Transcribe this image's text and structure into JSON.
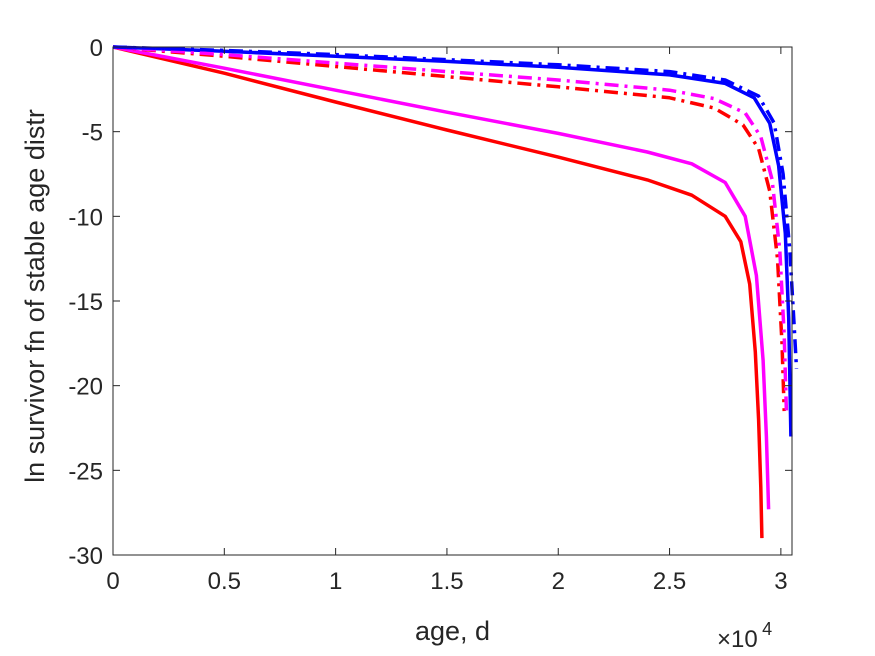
{
  "chart_data": {
    "type": "line",
    "title": "",
    "xlabel": "age, d",
    "ylabel": "ln survivor fn of stable age distr",
    "x_multiplier": {
      "base": "×10",
      "exponent": "4"
    },
    "xlim": [
      0,
      30500
    ],
    "ylim": [
      -30,
      0
    ],
    "xticks": [
      0,
      5000,
      10000,
      15000,
      20000,
      25000,
      30000
    ],
    "xtick_labels": [
      "0",
      "0.5",
      "1",
      "1.5",
      "2",
      "2.5",
      "3"
    ],
    "yticks": [
      0,
      -5,
      -10,
      -15,
      -20,
      -25,
      -30
    ],
    "ytick_labels": [
      "0",
      "-5",
      "-10",
      "-15",
      "-20",
      "-25",
      "-30"
    ],
    "grid": false,
    "series": [
      {
        "color": "#ff0000",
        "style": "solid",
        "points": [
          [
            0,
            0
          ],
          [
            5000,
            -1.55
          ],
          [
            10000,
            -3.25
          ],
          [
            15000,
            -4.9
          ],
          [
            20000,
            -6.5
          ],
          [
            24000,
            -7.85
          ],
          [
            26000,
            -8.75
          ],
          [
            27500,
            -10.0
          ],
          [
            28200,
            -11.5
          ],
          [
            28600,
            -14.0
          ],
          [
            28850,
            -18.0
          ],
          [
            29000,
            -22.0
          ],
          [
            29100,
            -26.0
          ],
          [
            29150,
            -29.0
          ]
        ]
      },
      {
        "color": "#ff00ff",
        "style": "solid",
        "points": [
          [
            0,
            0
          ],
          [
            5000,
            -1.25
          ],
          [
            10000,
            -2.55
          ],
          [
            15000,
            -3.85
          ],
          [
            20000,
            -5.1
          ],
          [
            24000,
            -6.2
          ],
          [
            26000,
            -6.9
          ],
          [
            27500,
            -8.0
          ],
          [
            28400,
            -10.0
          ],
          [
            28900,
            -13.5
          ],
          [
            29200,
            -18.5
          ],
          [
            29350,
            -23.0
          ],
          [
            29450,
            -27.3
          ]
        ]
      },
      {
        "color": "#0000ff",
        "style": "solid",
        "points": [
          [
            0,
            0
          ],
          [
            5000,
            -0.25
          ],
          [
            10000,
            -0.55
          ],
          [
            15000,
            -0.85
          ],
          [
            20000,
            -1.2
          ],
          [
            25000,
            -1.65
          ],
          [
            27500,
            -2.15
          ],
          [
            28800,
            -3.0
          ],
          [
            29500,
            -4.5
          ],
          [
            29900,
            -7.0
          ],
          [
            30200,
            -11.0
          ],
          [
            30350,
            -16.0
          ],
          [
            30450,
            -23.0
          ]
        ]
      },
      {
        "color": "#ff0000",
        "style": "dashdot",
        "points": [
          [
            0,
            0
          ],
          [
            5000,
            -0.55
          ],
          [
            10000,
            -1.15
          ],
          [
            15000,
            -1.75
          ],
          [
            20000,
            -2.35
          ],
          [
            25000,
            -3.0
          ],
          [
            27000,
            -3.6
          ],
          [
            28300,
            -4.6
          ],
          [
            29000,
            -6.0
          ],
          [
            29500,
            -8.5
          ],
          [
            29850,
            -12.5
          ],
          [
            30050,
            -17.5
          ],
          [
            30150,
            -21.5
          ]
        ]
      },
      {
        "color": "#ff00ff",
        "style": "dashdot",
        "points": [
          [
            0,
            0
          ],
          [
            5000,
            -0.45
          ],
          [
            10000,
            -0.95
          ],
          [
            15000,
            -1.45
          ],
          [
            20000,
            -1.95
          ],
          [
            25000,
            -2.55
          ],
          [
            27000,
            -3.05
          ],
          [
            28400,
            -3.9
          ],
          [
            29100,
            -5.3
          ],
          [
            29600,
            -7.8
          ],
          [
            29950,
            -12.0
          ],
          [
            30150,
            -17.0
          ],
          [
            30250,
            -21.5
          ]
        ]
      },
      {
        "color": "#0000ff",
        "style": "dashdot",
        "points": [
          [
            0,
            0
          ],
          [
            5000,
            -0.2
          ],
          [
            10000,
            -0.45
          ],
          [
            15000,
            -0.75
          ],
          [
            20000,
            -1.05
          ],
          [
            25000,
            -1.45
          ],
          [
            27500,
            -1.95
          ],
          [
            29000,
            -2.9
          ],
          [
            29700,
            -4.5
          ],
          [
            30100,
            -7.5
          ],
          [
            30400,
            -12.0
          ],
          [
            30600,
            -16.5
          ],
          [
            30700,
            -19.0
          ]
        ]
      }
    ]
  }
}
